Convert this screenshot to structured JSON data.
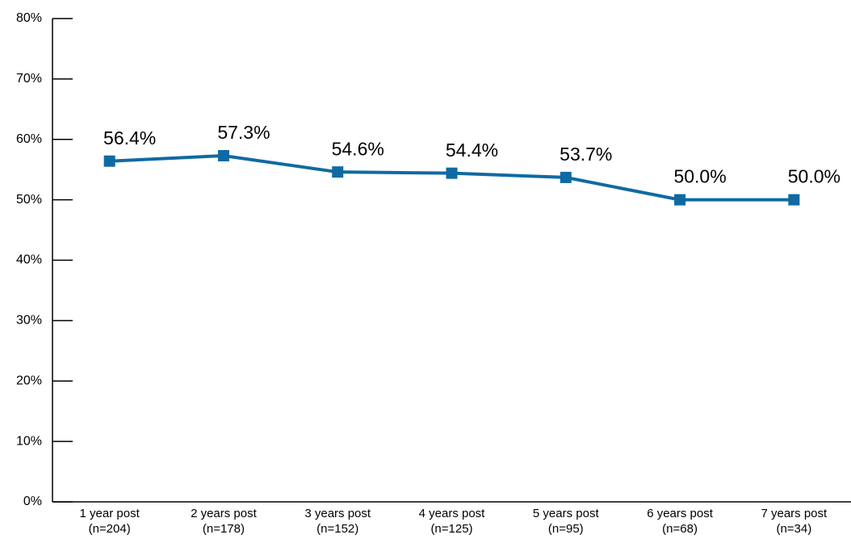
{
  "chart_data": {
    "type": "line",
    "categories": [
      "1 year post\n(n=204)",
      "2 years post\n(n=178)",
      "3 years post\n(n=152)",
      "4 years post\n(n=125)",
      "5 years post\n(n=95)",
      "6 years post\n(n=68)",
      "7 years post\n(n=34)"
    ],
    "values": [
      56.4,
      57.3,
      54.6,
      54.4,
      53.7,
      50.0,
      50.0
    ],
    "value_labels": [
      "56.4%",
      "57.3%",
      "54.6%",
      "54.4%",
      "53.7%",
      "50.0%",
      "50.0%"
    ],
    "color": "#0f6aa3",
    "ylim": [
      0,
      80
    ],
    "yticks": [
      {
        "value": 0,
        "label": "0%"
      },
      {
        "value": 10,
        "label": "10%"
      },
      {
        "value": 20,
        "label": "20%"
      },
      {
        "value": 30,
        "label": "30%"
      },
      {
        "value": 40,
        "label": "40%"
      },
      {
        "value": 50,
        "label": "50%"
      },
      {
        "value": 60,
        "label": "60%"
      },
      {
        "value": 70,
        "label": "70%"
      },
      {
        "value": 80,
        "label": "80%"
      }
    ]
  }
}
